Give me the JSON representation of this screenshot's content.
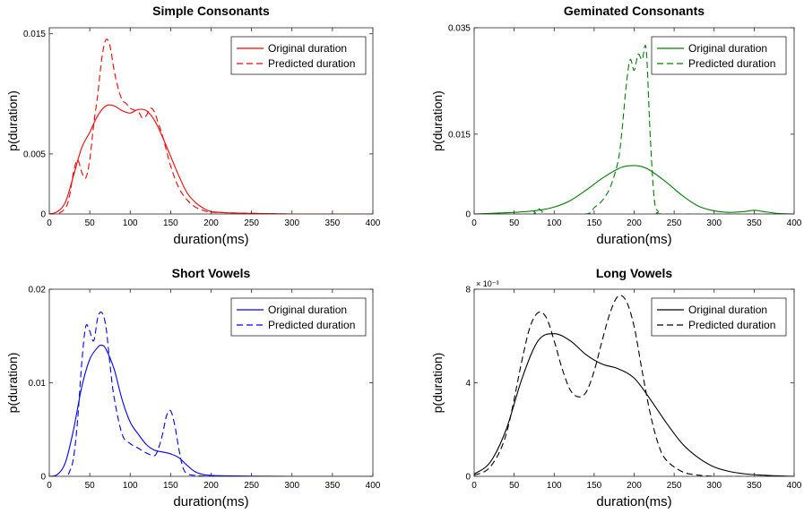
{
  "chart_data": [
    {
      "type": "line",
      "title": "Simple Consonants",
      "xlabel": "duration(ms)",
      "ylabel": "p(duration)",
      "xlim": [
        0,
        400
      ],
      "ylim": [
        0,
        0.0155
      ],
      "xticks": [
        0,
        50,
        100,
        150,
        200,
        250,
        300,
        350,
        400
      ],
      "xtick_labels": [
        "0",
        "50",
        "100",
        "150",
        "200",
        "250",
        "300",
        "350",
        "400"
      ],
      "yticks": [
        0,
        0.005,
        0.015
      ],
      "ytick_labels": [
        "0",
        "0.005",
        "0.015"
      ],
      "exponent": "",
      "color": "#ff0000",
      "legend_position": "top-right",
      "series": [
        {
          "name": "Original duration",
          "style": "solid",
          "x": [
            0,
            10,
            20,
            30,
            40,
            50,
            60,
            70,
            80,
            90,
            100,
            110,
            120,
            130,
            140,
            150,
            160,
            170,
            180,
            190,
            200,
            220,
            250,
            300,
            350,
            400
          ],
          "y": [
            0,
            0.0002,
            0.001,
            0.0032,
            0.0055,
            0.0068,
            0.0082,
            0.009,
            0.009,
            0.0086,
            0.0084,
            0.0087,
            0.0086,
            0.0078,
            0.0064,
            0.0048,
            0.0032,
            0.0018,
            0.001,
            0.0005,
            0.0002,
            0.0001,
            5e-05,
            0,
            0,
            0
          ]
        },
        {
          "name": "Predicted duration",
          "style": "dashed",
          "x": [
            0,
            10,
            20,
            25,
            30,
            35,
            40,
            45,
            50,
            55,
            60,
            65,
            70,
            75,
            80,
            85,
            90,
            95,
            100,
            110,
            115,
            120,
            125,
            130,
            135,
            140,
            150,
            160,
            170,
            180,
            190,
            200,
            220,
            250,
            300,
            350,
            400
          ],
          "y": [
            0,
            0,
            0.0005,
            0.0015,
            0.0035,
            0.0045,
            0.0035,
            0.003,
            0.0045,
            0.0075,
            0.01,
            0.013,
            0.0145,
            0.014,
            0.012,
            0.0105,
            0.0095,
            0.0092,
            0.0088,
            0.0085,
            0.008,
            0.0082,
            0.0088,
            0.0085,
            0.0075,
            0.0065,
            0.004,
            0.0022,
            0.0012,
            0.0006,
            0.0003,
            0.00015,
            0.0001,
            5e-05,
            0,
            0,
            0
          ]
        }
      ]
    },
    {
      "type": "line",
      "title": "Geminated Consonants",
      "xlabel": "duration(ms)",
      "ylabel": "p(duration)",
      "xlim": [
        0,
        400
      ],
      "ylim": [
        0,
        0.035
      ],
      "xticks": [
        0,
        50,
        100,
        150,
        200,
        250,
        300,
        350,
        400
      ],
      "xtick_labels": [
        "0",
        "50",
        "100",
        "150",
        "200",
        "250",
        "300",
        "350",
        "400"
      ],
      "yticks": [
        0,
        0.015,
        0.035
      ],
      "ytick_labels": [
        "0",
        "0.015",
        "0.035"
      ],
      "exponent": "",
      "color": "#008000",
      "legend_position": "top-right",
      "series": [
        {
          "name": "Original duration",
          "style": "solid",
          "x": [
            0,
            50,
            80,
            100,
            120,
            140,
            160,
            180,
            190,
            200,
            210,
            220,
            240,
            260,
            280,
            300,
            320,
            340,
            350,
            360,
            380,
            400
          ],
          "y": [
            0,
            0.0003,
            0.0007,
            0.0013,
            0.0025,
            0.0045,
            0.0067,
            0.0085,
            0.009,
            0.0091,
            0.0089,
            0.0082,
            0.006,
            0.0035,
            0.0015,
            0.0006,
            0.0003,
            0.0005,
            0.0007,
            0.0005,
            0.0001,
            0
          ]
        },
        {
          "name": "Predicted duration",
          "style": "dashed",
          "x": [
            0,
            70,
            75,
            80,
            85,
            90,
            140,
            150,
            160,
            170,
            180,
            185,
            190,
            195,
            200,
            205,
            210,
            215,
            220,
            225,
            230,
            240,
            400
          ],
          "y": [
            0,
            0,
            0.0005,
            0.001,
            0.0005,
            0,
            0,
            0.0012,
            0.0025,
            0.005,
            0.01,
            0.016,
            0.024,
            0.029,
            0.027,
            0.03,
            0.029,
            0.031,
            0.015,
            0.003,
            0.0005,
            0,
            0
          ]
        }
      ]
    },
    {
      "type": "line",
      "title": "Short Vowels",
      "xlabel": "duration(ms)",
      "ylabel": "p(duration)",
      "xlim": [
        0,
        400
      ],
      "ylim": [
        0,
        0.02
      ],
      "xticks": [
        0,
        50,
        100,
        150,
        200,
        250,
        300,
        350,
        400
      ],
      "xtick_labels": [
        "0",
        "50",
        "100",
        "150",
        "200",
        "250",
        "300",
        "350",
        "400"
      ],
      "yticks": [
        0,
        0.01,
        0.02
      ],
      "ytick_labels": [
        "0",
        "0.01",
        "0.02"
      ],
      "exponent": "",
      "color": "#0000ff",
      "legend_position": "top-right",
      "series": [
        {
          "name": "Original duration",
          "style": "solid",
          "x": [
            0,
            10,
            20,
            30,
            40,
            50,
            60,
            65,
            70,
            80,
            90,
            100,
            110,
            120,
            130,
            140,
            150,
            160,
            170,
            180,
            190,
            200,
            220,
            250,
            300,
            350,
            400
          ],
          "y": [
            0,
            0.0002,
            0.0015,
            0.005,
            0.0095,
            0.0125,
            0.0138,
            0.014,
            0.0136,
            0.0115,
            0.0082,
            0.0058,
            0.0045,
            0.0034,
            0.0028,
            0.0026,
            0.0024,
            0.002,
            0.0012,
            0.0005,
            0.0002,
            0.0001,
            5e-05,
            2e-05,
            0,
            0,
            0
          ]
        },
        {
          "name": "Predicted duration",
          "style": "dashed",
          "x": [
            0,
            20,
            25,
            30,
            35,
            40,
            45,
            50,
            55,
            60,
            65,
            70,
            75,
            80,
            90,
            100,
            110,
            120,
            130,
            135,
            140,
            145,
            150,
            155,
            160,
            165,
            170,
            180,
            200,
            250,
            400
          ],
          "y": [
            0,
            0,
            0.0005,
            0.002,
            0.006,
            0.012,
            0.016,
            0.0155,
            0.0145,
            0.017,
            0.0175,
            0.016,
            0.012,
            0.0085,
            0.0045,
            0.0035,
            0.003,
            0.0025,
            0.0022,
            0.003,
            0.0045,
            0.0065,
            0.007,
            0.0055,
            0.003,
            0.001,
            0.0003,
            0.0001,
            0,
            0,
            0
          ]
        }
      ]
    },
    {
      "type": "line",
      "title": "Long Vowels",
      "xlabel": "duration(ms)",
      "ylabel": "p(duration)",
      "xlim": [
        0,
        400
      ],
      "ylim": [
        0,
        0.008
      ],
      "xticks": [
        0,
        50,
        100,
        150,
        200,
        250,
        300,
        350,
        400
      ],
      "xtick_labels": [
        "0",
        "50",
        "100",
        "150",
        "200",
        "250",
        "300",
        "350",
        "400"
      ],
      "yticks": [
        0,
        0.004,
        0.008
      ],
      "ytick_labels": [
        "0",
        "4",
        "8"
      ],
      "exponent": "× 10⁻³",
      "color": "#000000",
      "legend_position": "top-right",
      "series": [
        {
          "name": "Original duration",
          "style": "solid",
          "x": [
            0,
            20,
            40,
            60,
            80,
            100,
            120,
            140,
            160,
            180,
            200,
            220,
            240,
            260,
            280,
            300,
            320,
            340,
            360,
            380,
            400
          ],
          "y": [
            0.0001,
            0.0006,
            0.002,
            0.0042,
            0.0058,
            0.0061,
            0.0058,
            0.0052,
            0.0048,
            0.0046,
            0.0042,
            0.0033,
            0.0023,
            0.0014,
            0.0008,
            0.0004,
            0.0002,
            0.0001,
            5e-05,
            2e-05,
            0
          ]
        },
        {
          "name": "Predicted duration",
          "style": "dashed",
          "x": [
            0,
            20,
            40,
            60,
            70,
            80,
            90,
            100,
            110,
            120,
            130,
            140,
            150,
            160,
            170,
            180,
            190,
            200,
            210,
            220,
            230,
            240,
            260,
            280,
            300,
            320,
            400
          ],
          "y": [
            5e-05,
            0.0004,
            0.0018,
            0.005,
            0.0064,
            0.007,
            0.0068,
            0.0058,
            0.0046,
            0.0037,
            0.0034,
            0.0036,
            0.0045,
            0.0058,
            0.007,
            0.0077,
            0.0075,
            0.0064,
            0.0045,
            0.0027,
            0.0014,
            0.0007,
            0.0002,
            5e-05,
            0,
            0,
            0
          ]
        }
      ]
    }
  ]
}
